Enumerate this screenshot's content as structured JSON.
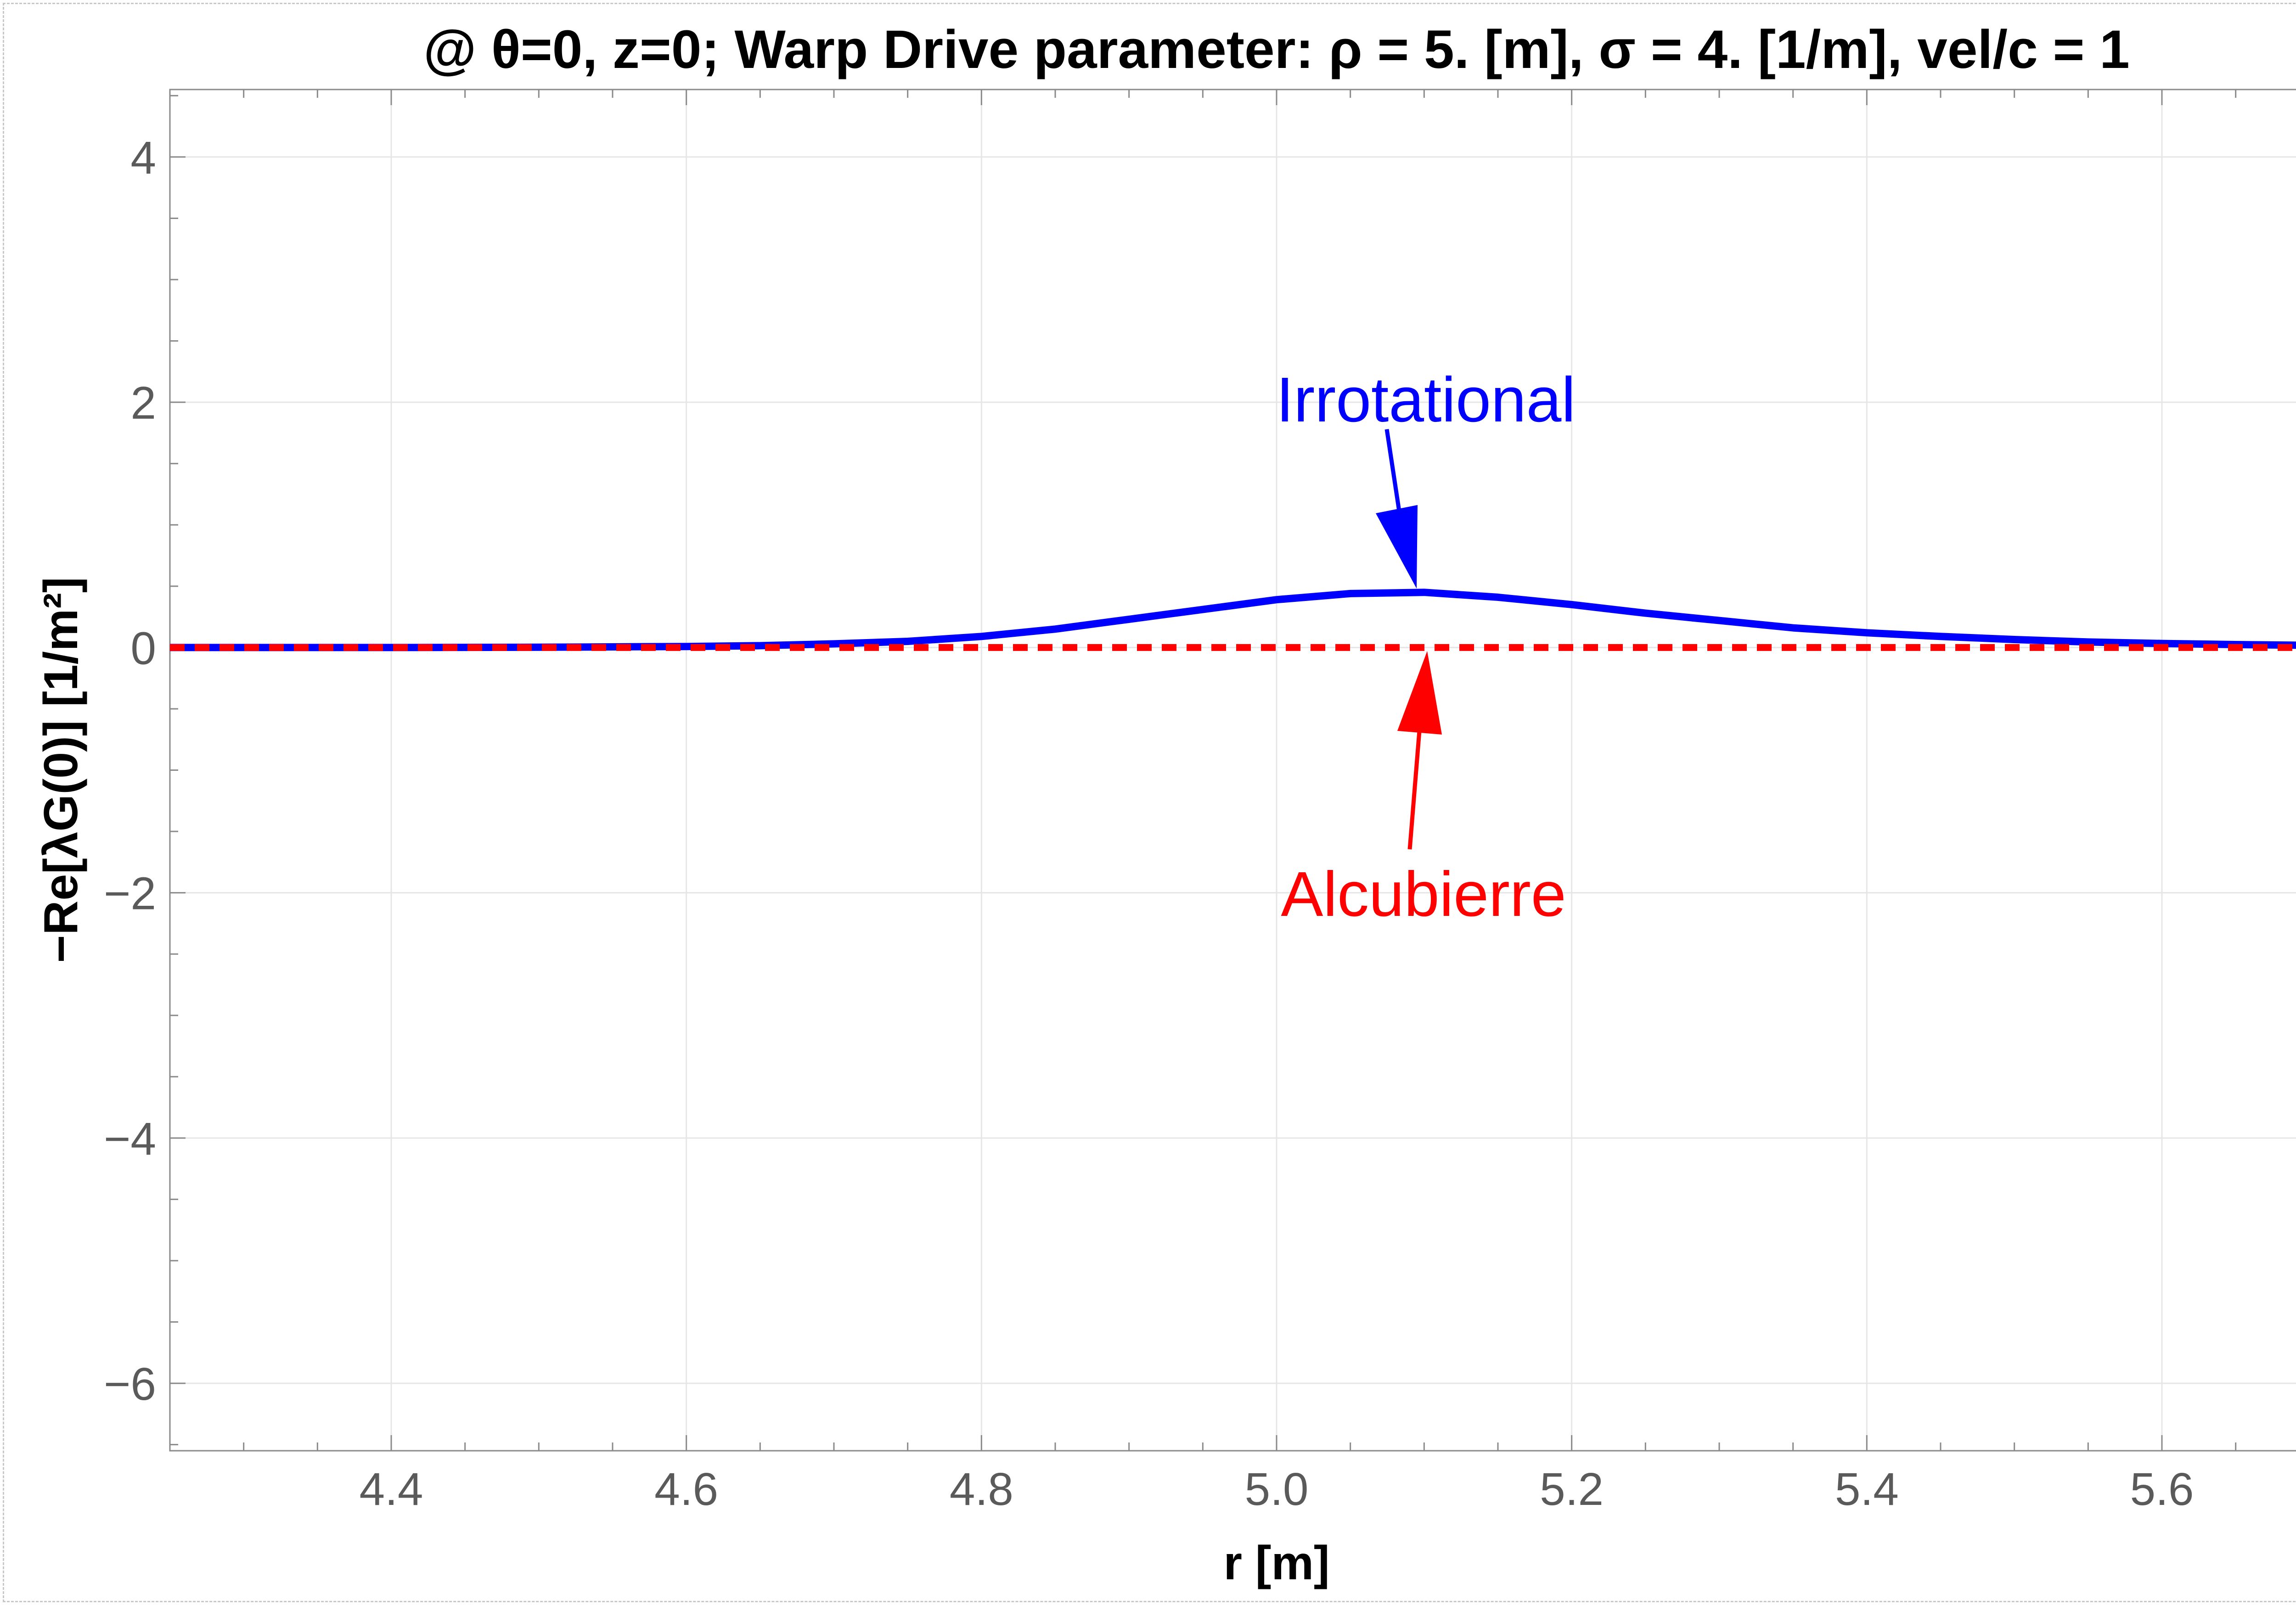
{
  "chart_data": {
    "type": "line",
    "title": "@ θ=0, z=0; Warp Drive parameter: ρ = 5. [m], σ = 4. [1/m], vel/c = 1",
    "xlabel": "r [m]",
    "ylabel": "−Re[λG(0)] [1/m²]",
    "xlim": [
      4.25,
      5.75
    ],
    "ylim": [
      -6.55,
      4.55
    ],
    "xticks": [
      4.4,
      4.6,
      4.8,
      5.0,
      5.2,
      5.4,
      5.6
    ],
    "xtick_labels": [
      "4.4",
      "4.6",
      "4.8",
      "5.0",
      "5.2",
      "5.4",
      "5.6"
    ],
    "yticks": [
      4,
      2,
      0,
      -2,
      -4,
      -6
    ],
    "ytick_labels": [
      "4",
      "2",
      "0",
      "−2",
      "−4",
      "−6"
    ],
    "grid": true,
    "series": [
      {
        "name": "Irrotational",
        "color": "#0000ff",
        "style": "solid",
        "x": [
          4.25,
          4.4,
          4.5,
          4.6,
          4.65,
          4.7,
          4.75,
          4.8,
          4.85,
          4.9,
          4.95,
          5.0,
          5.05,
          5.1,
          5.15,
          5.2,
          5.25,
          5.3,
          5.35,
          5.4,
          5.45,
          5.5,
          5.55,
          5.6,
          5.65,
          5.7,
          5.75
        ],
        "y": [
          0.0,
          0.0,
          0.002,
          0.008,
          0.015,
          0.03,
          0.05,
          0.09,
          0.15,
          0.23,
          0.31,
          0.39,
          0.44,
          0.45,
          0.41,
          0.35,
          0.28,
          0.22,
          0.16,
          0.12,
          0.09,
          0.065,
          0.045,
          0.033,
          0.024,
          0.018,
          0.013
        ]
      },
      {
        "name": "Alcubierre",
        "color": "#ff0000",
        "style": "dashed",
        "x": [
          4.25,
          5.75
        ],
        "y": [
          0.0,
          0.0
        ]
      }
    ],
    "annotations": [
      {
        "text": "Irrotational",
        "color": "#0000ff",
        "points_to_x": 5.09,
        "points_to_y": 0.45
      },
      {
        "text": "Alcubierre",
        "color": "#ff0000",
        "points_to_x": 5.1,
        "points_to_y": 0.0
      }
    ]
  }
}
